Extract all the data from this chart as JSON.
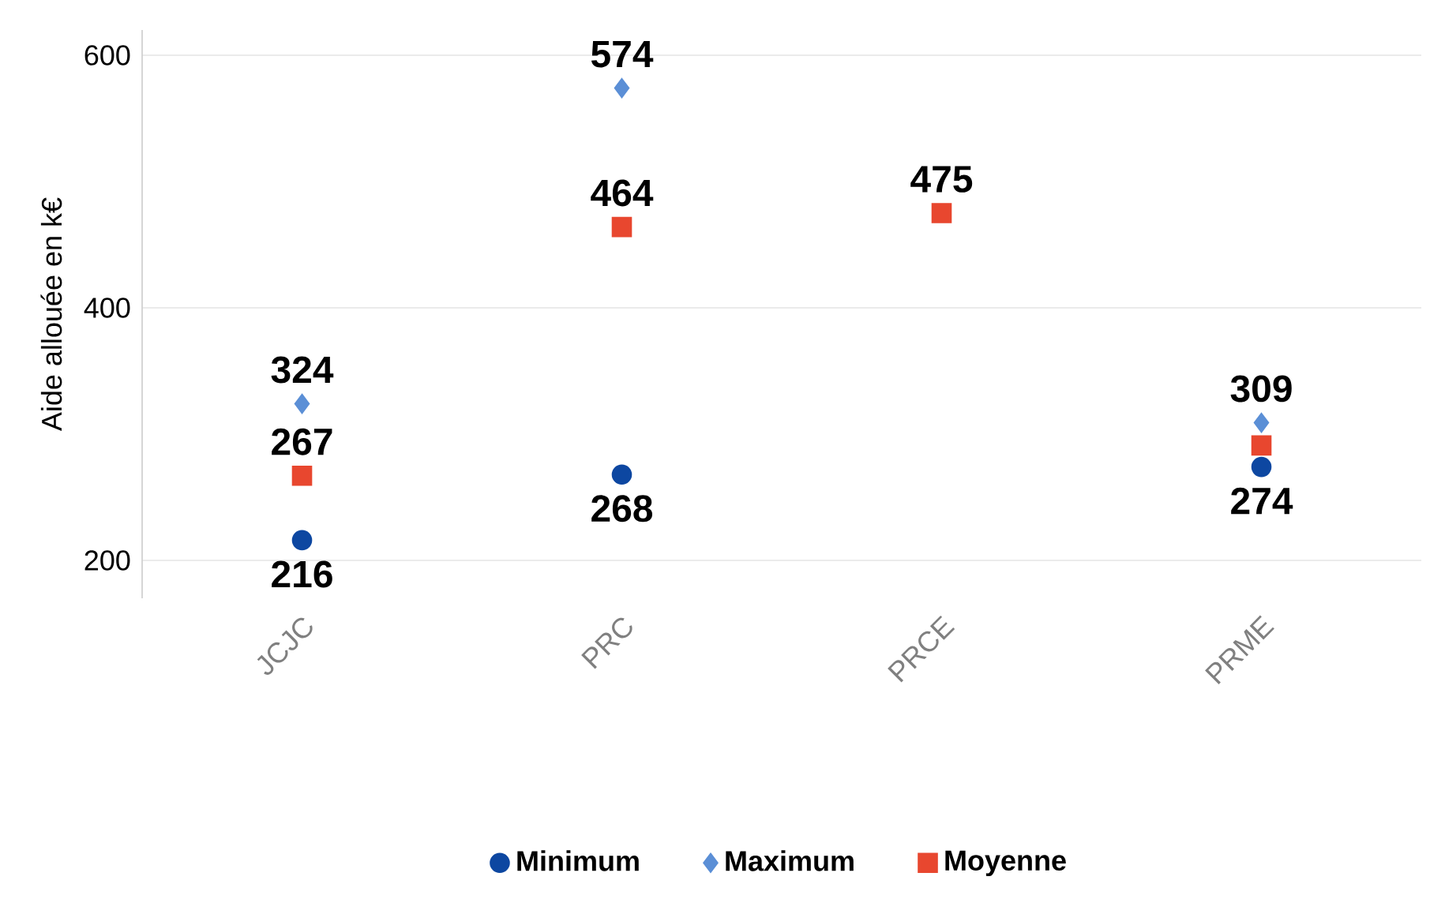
{
  "chart_data": {
    "type": "scatter",
    "ylabel": "Aide allouée en k€",
    "categories": [
      "JCJC",
      "PRC",
      "PRCE",
      "PRME"
    ],
    "series": [
      {
        "name": "Minimum",
        "color": "#0d47a1",
        "marker": "circle",
        "values": [
          216,
          268,
          null,
          274
        ],
        "value_labels": [
          "216",
          "268",
          null,
          "274"
        ]
      },
      {
        "name": "Maximum",
        "color": "#5b8fd6",
        "marker": "diamond",
        "values": [
          324,
          574,
          null,
          309
        ],
        "value_labels": [
          "324",
          "574",
          null,
          "309"
        ]
      },
      {
        "name": "Moyenne",
        "color": "#e8472f",
        "marker": "square",
        "values": [
          267,
          464,
          475,
          291
        ],
        "value_labels": [
          "267",
          "464",
          "475",
          null
        ]
      }
    ],
    "ylim": [
      170,
      620
    ],
    "yticks": [
      200,
      400,
      600
    ],
    "grid": "y",
    "legend": "bottom"
  }
}
